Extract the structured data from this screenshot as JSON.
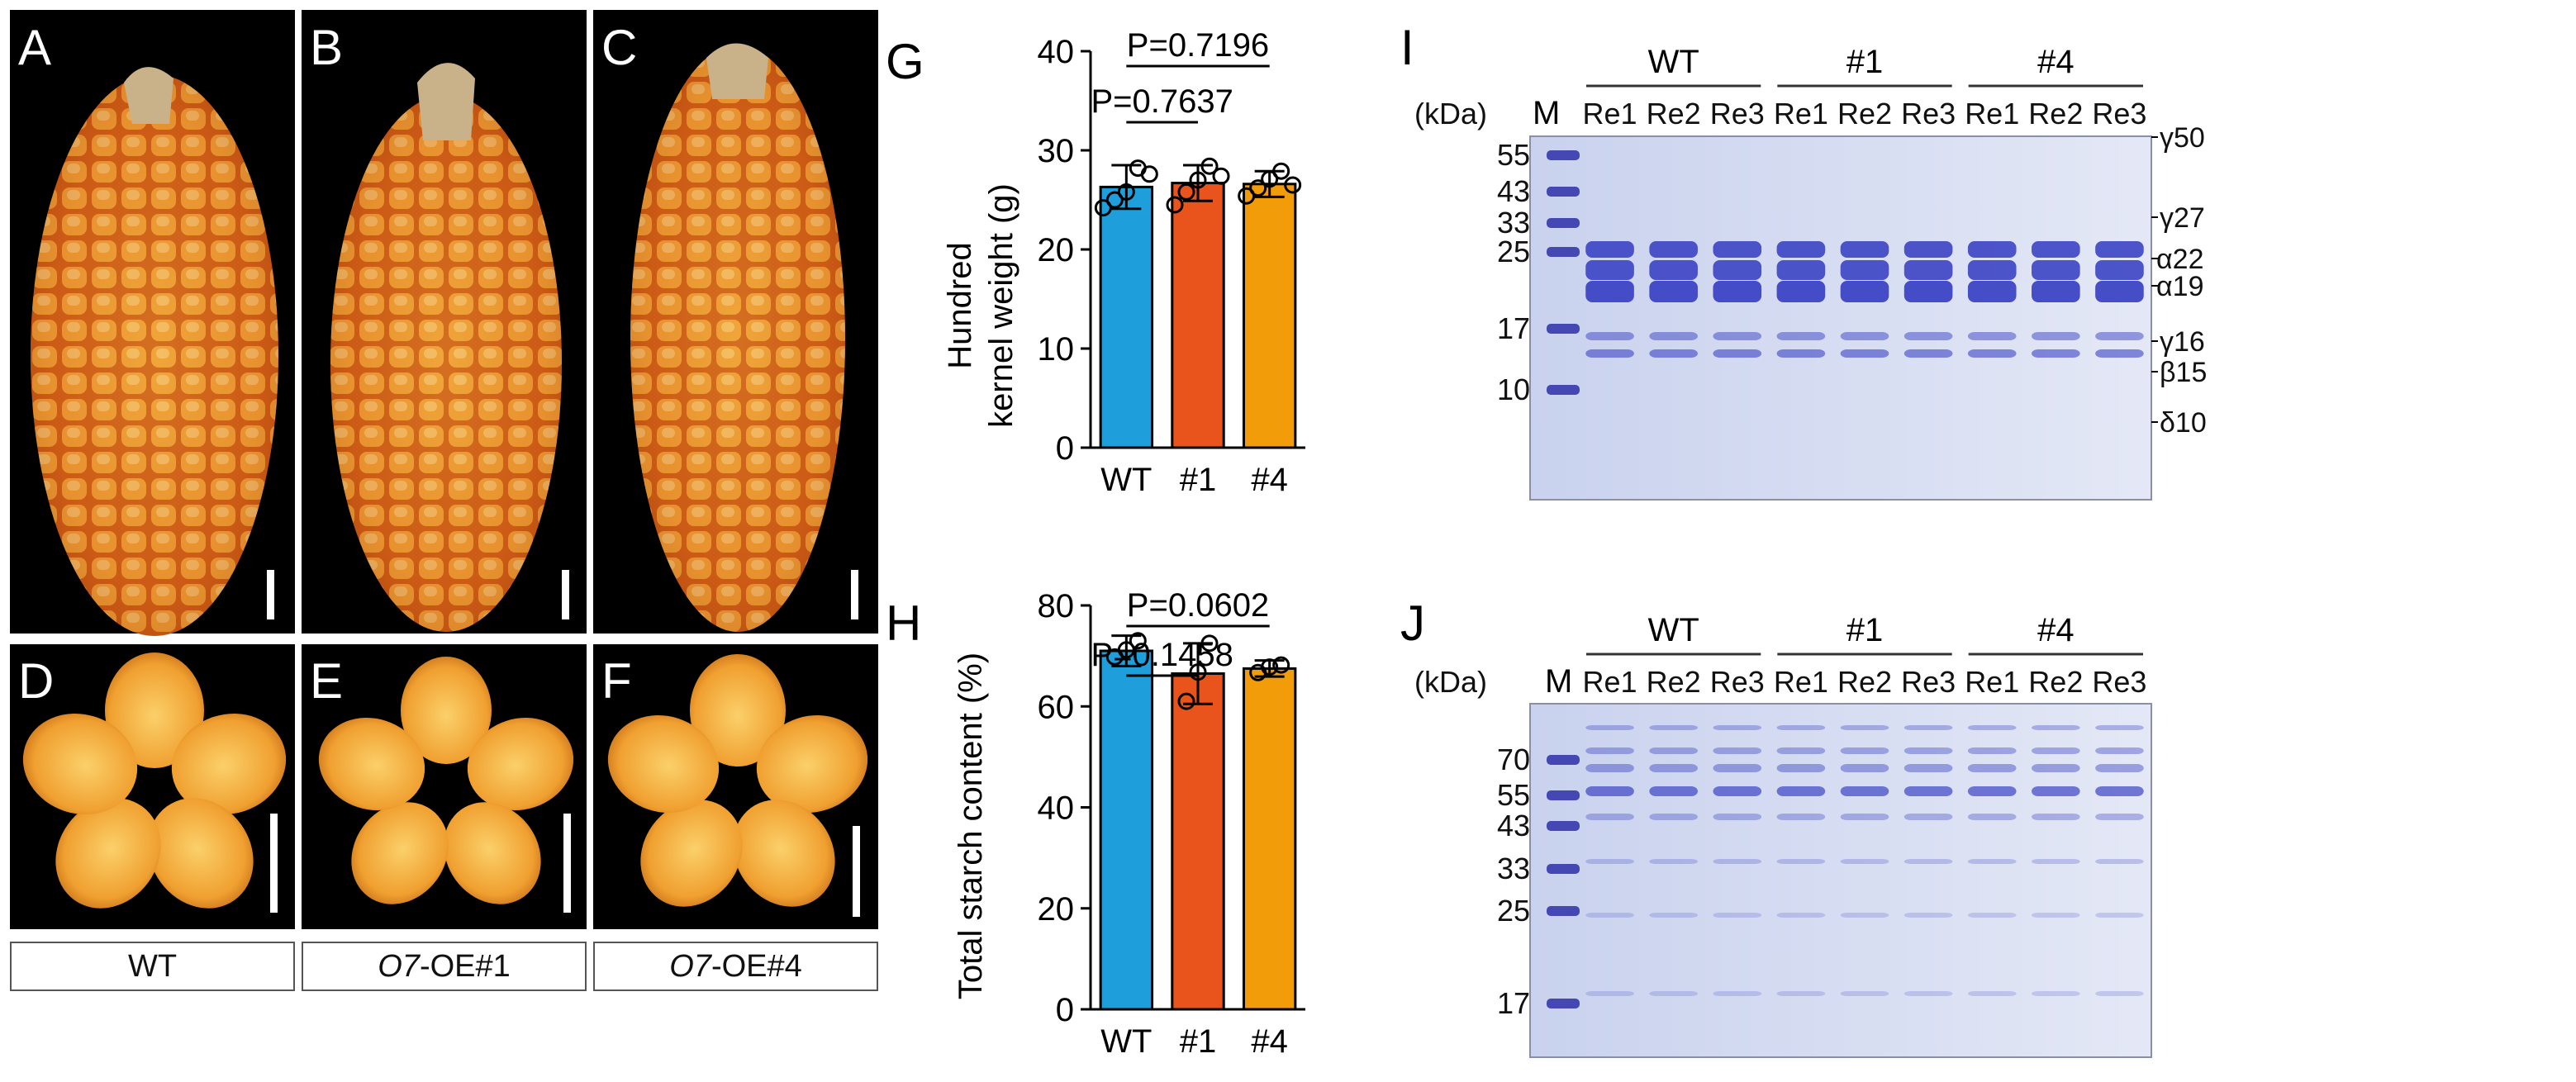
{
  "panel_letters": [
    "A",
    "B",
    "C",
    "D",
    "E",
    "F",
    "G",
    "H",
    "I",
    "J"
  ],
  "genotype_labels": {
    "wt": "WT",
    "oe1_prefix": "O7",
    "oe1_suffix": "-OE#1",
    "oe4_prefix": "O7",
    "oe4_suffix": "-OE#4"
  },
  "colors": {
    "wt": "#1e9fdc",
    "oe1": "#e8541c",
    "oe4": "#f29c0a",
    "gel_bg": "#dbe2f4",
    "band": "#3c44c4",
    "ear": "#e0761c",
    "kernel": "#f2a42e"
  },
  "chart_data": [
    {
      "panel": "G",
      "type": "bar",
      "categories": [
        "WT",
        "#1",
        "#4"
      ],
      "values": [
        26.3,
        26.7,
        26.6
      ],
      "errors": [
        2.2,
        1.8,
        1.3
      ],
      "points": [
        [
          24.2,
          25.0,
          25.8,
          28.2,
          27.6
        ],
        [
          24.5,
          25.8,
          27.0,
          28.4,
          27.4
        ],
        [
          25.4,
          26.2,
          27.1,
          27.9,
          26.5
        ]
      ],
      "ylabel_line1": "Hundred",
      "ylabel_line2": "kernel weight (g)",
      "ylim": [
        0,
        40
      ],
      "yticks": [
        "0",
        "10",
        "20",
        "30",
        "40"
      ],
      "stats": [
        "P=0.7637",
        "P=0.7196"
      ]
    },
    {
      "panel": "H",
      "type": "bar",
      "categories": [
        "WT",
        "#1",
        "#4"
      ],
      "values": [
        71.0,
        66.5,
        67.5
      ],
      "errors": [
        3.0,
        6.0,
        1.6
      ],
      "points": [
        [
          69.8,
          71.2,
          73.0
        ],
        [
          61.0,
          66.8,
          72.5
        ],
        [
          66.7,
          67.8,
          68.2
        ]
      ],
      "ylabel": "Total starch content (%)",
      "ylim": [
        0,
        80
      ],
      "yticks": [
        "0",
        "20",
        "40",
        "60",
        "80"
      ],
      "stats": [
        "P=0.1458",
        "P=0.0602"
      ]
    }
  ],
  "gel_I": {
    "groups": [
      "WT",
      "#1",
      "#4"
    ],
    "lanes": [
      "Re1",
      "Re2",
      "Re3",
      "Re1",
      "Re2",
      "Re3",
      "Re1",
      "Re2",
      "Re3"
    ],
    "marker_label": "M",
    "unit": "(kDa)",
    "mw": [
      "55",
      "43",
      "33",
      "25",
      "17",
      "10"
    ],
    "zeins": [
      "γ50",
      "γ27",
      "α22",
      "α19",
      "γ16",
      "β15",
      "δ10"
    ]
  },
  "gel_J": {
    "groups": [
      "WT",
      "#1",
      "#4"
    ],
    "lanes": [
      "Re1",
      "Re2",
      "Re3",
      "Re1",
      "Re2",
      "Re3",
      "Re1",
      "Re2",
      "Re3"
    ],
    "marker_label": "M",
    "unit": "(kDa)",
    "mw": [
      "70",
      "55",
      "43",
      "33",
      "25",
      "17"
    ]
  }
}
